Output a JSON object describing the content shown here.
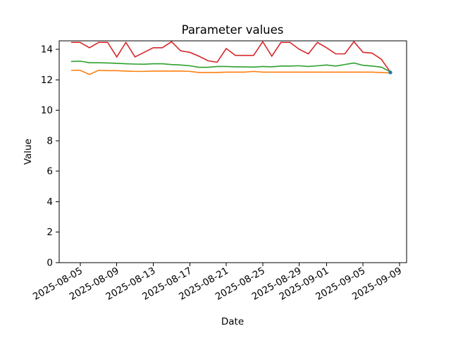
{
  "figure": {
    "background": "#ffffff",
    "border_color": "#000000"
  },
  "chart_data": {
    "type": "line",
    "title": "Parameter values",
    "xlabel": "Date",
    "ylabel": "Value",
    "grid": false,
    "legend": "none",
    "x_start_date": "2025-08-04",
    "x_end_date": "2025-09-08",
    "n_points": 36,
    "ylim": [
      0,
      14.56
    ],
    "yticks": [
      0,
      2,
      4,
      6,
      8,
      10,
      12,
      14
    ],
    "x_ticks": [
      {
        "label": "2025-08-05",
        "day": 1
      },
      {
        "label": "2025-08-09",
        "day": 5
      },
      {
        "label": "2025-08-13",
        "day": 9
      },
      {
        "label": "2025-08-17",
        "day": 13
      },
      {
        "label": "2025-08-21",
        "day": 17
      },
      {
        "label": "2025-08-25",
        "day": 21
      },
      {
        "label": "2025-08-29",
        "day": 25
      },
      {
        "label": "2025-09-01",
        "day": 28
      },
      {
        "label": "2025-09-05",
        "day": 32
      },
      {
        "label": "2025-09-09",
        "day": 36
      }
    ],
    "x_tick_rotation_deg": 30,
    "series": [
      {
        "name": "red-series",
        "color": "#d62728",
        "values": [
          14.45,
          14.45,
          14.1,
          14.45,
          14.45,
          13.5,
          14.45,
          13.5,
          13.8,
          14.1,
          14.1,
          14.5,
          13.9,
          13.8,
          13.55,
          13.25,
          13.15,
          14.05,
          13.6,
          13.6,
          13.6,
          14.5,
          13.55,
          14.45,
          14.45,
          14.0,
          13.7,
          14.45,
          14.1,
          13.7,
          13.7,
          14.5,
          13.8,
          13.75,
          13.35,
          12.5
        ]
      },
      {
        "name": "green-series",
        "color": "#2ca02c",
        "values": [
          13.2,
          13.22,
          13.12,
          13.12,
          13.1,
          13.08,
          13.05,
          13.03,
          13.02,
          13.05,
          13.05,
          13.0,
          12.97,
          12.92,
          12.82,
          12.82,
          12.87,
          12.87,
          12.85,
          12.85,
          12.83,
          12.87,
          12.85,
          12.9,
          12.9,
          12.92,
          12.87,
          12.92,
          12.97,
          12.9,
          13.0,
          13.1,
          12.95,
          12.9,
          12.83,
          12.52
        ]
      },
      {
        "name": "orange-series",
        "color": "#ff7f0e",
        "values": [
          12.62,
          12.62,
          12.35,
          12.62,
          12.6,
          12.6,
          12.57,
          12.55,
          12.55,
          12.57,
          12.57,
          12.57,
          12.57,
          12.55,
          12.48,
          12.48,
          12.48,
          12.5,
          12.5,
          12.5,
          12.55,
          12.5,
          12.5,
          12.5,
          12.5,
          12.5,
          12.5,
          12.5,
          12.5,
          12.5,
          12.5,
          12.5,
          12.5,
          12.5,
          12.48,
          12.45
        ]
      }
    ],
    "end_marker": {
      "color": "#1f77b4",
      "day": 35,
      "value": 12.48
    }
  }
}
